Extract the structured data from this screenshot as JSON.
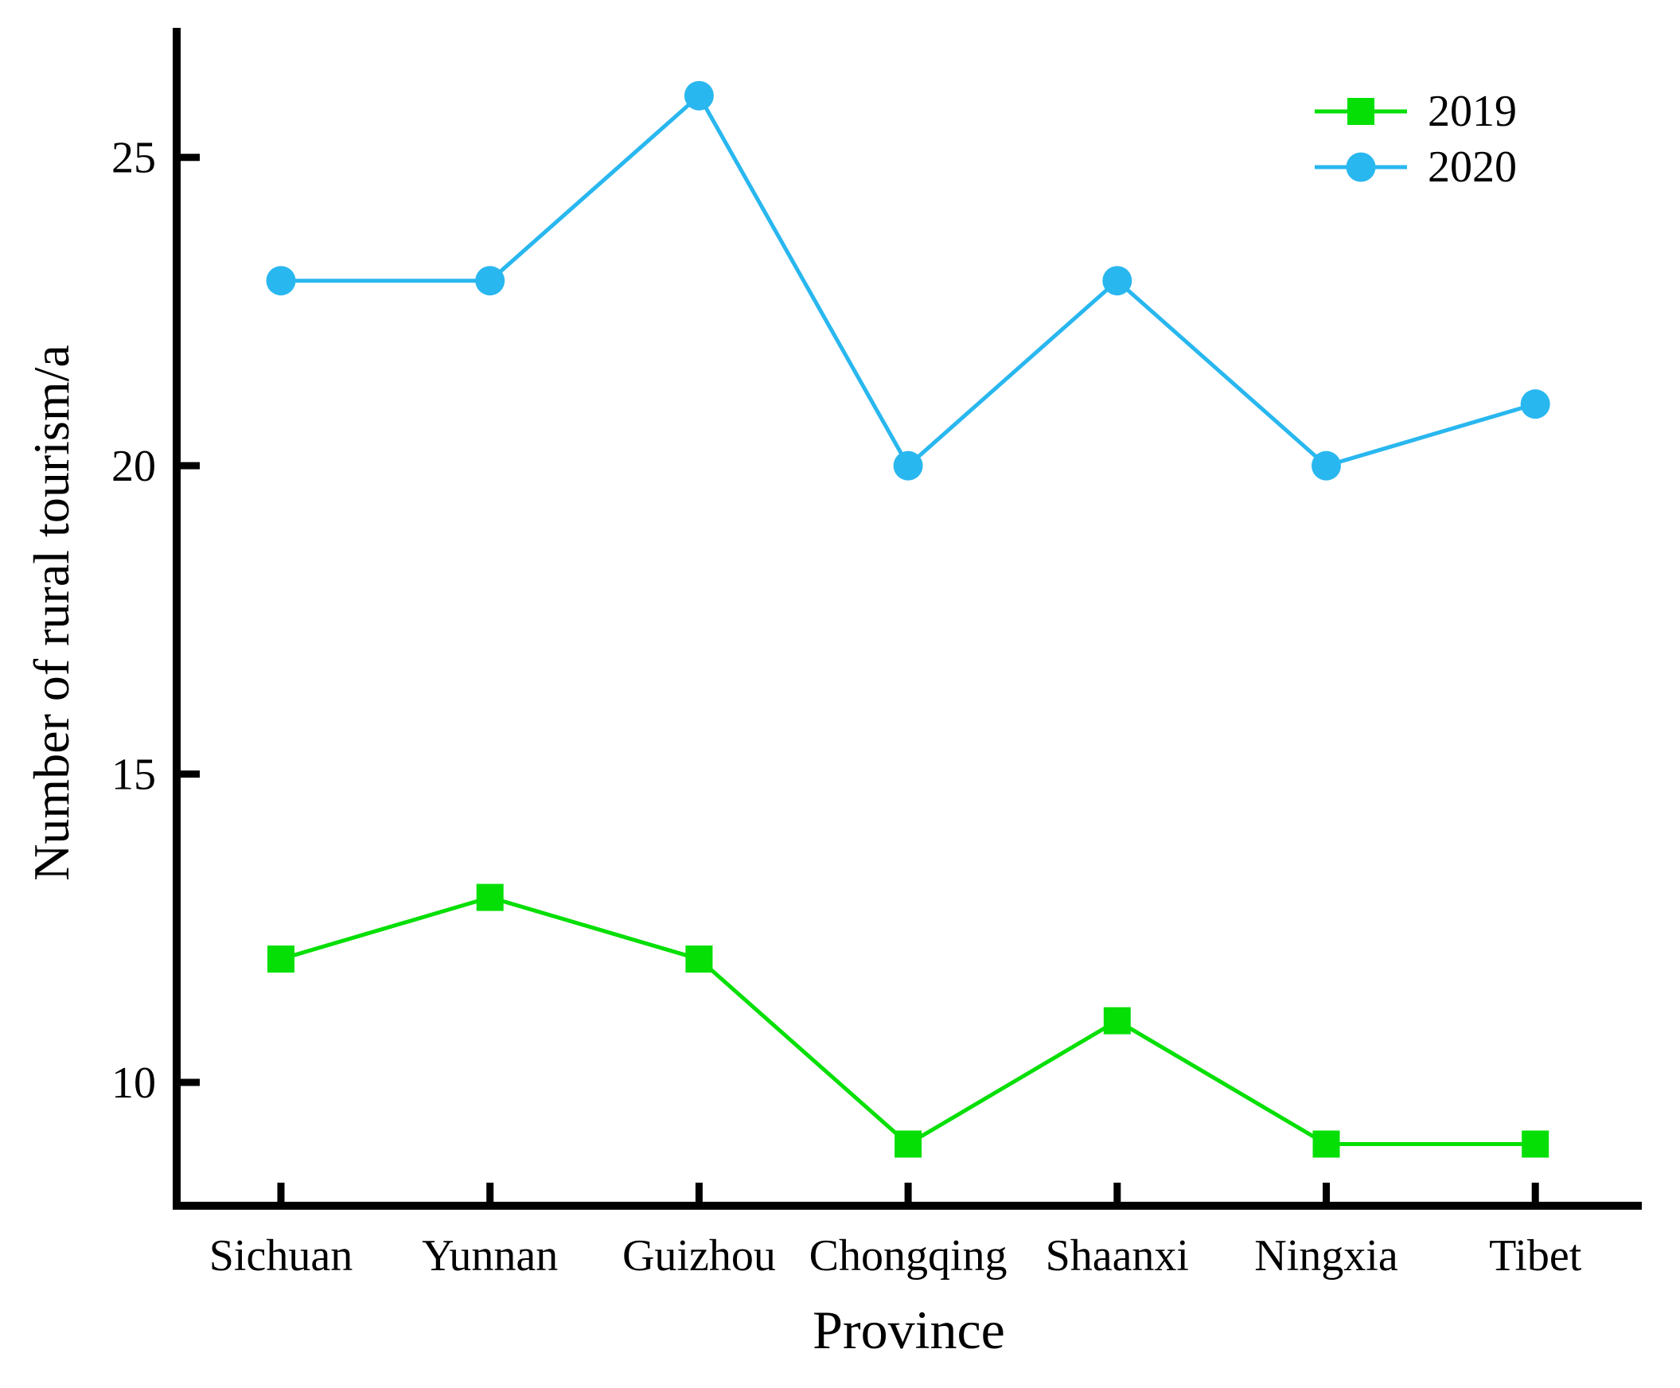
{
  "figure": {
    "background": "#FFFFFF",
    "text_color": "#000000"
  },
  "colors": {
    "series_2019": "#06DF06",
    "series_2020": "#29B7EF",
    "axis": "#000000"
  },
  "chart_data": {
    "type": "line",
    "title": "",
    "xlabel": "Province",
    "ylabel": "Number of rural tourism/a",
    "categories": [
      "Sichuan",
      "Yunnan",
      "Guizhou",
      "Chongqing",
      "Shaanxi",
      "Ningxia",
      "Tibet"
    ],
    "series": [
      {
        "name": "2019",
        "marker": "square",
        "color": "#06DF06",
        "values": [
          12,
          13,
          12,
          9,
          11,
          9,
          9
        ]
      },
      {
        "name": "2020",
        "marker": "circle",
        "color": "#29B7EF",
        "values": [
          23,
          23,
          26,
          20,
          23,
          20,
          21
        ]
      }
    ],
    "yticks": [
      10,
      15,
      20,
      25
    ],
    "ylim": [
      8,
      27.1
    ],
    "grid": false,
    "legend_position": "top-right",
    "tick_direction": "in"
  }
}
